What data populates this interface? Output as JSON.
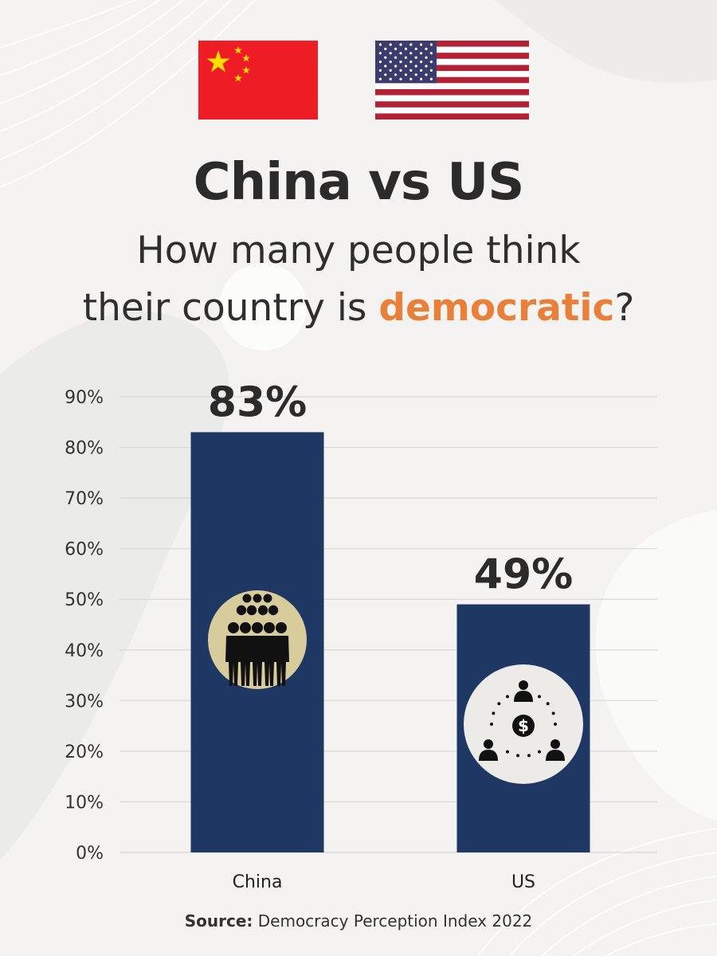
{
  "header": {
    "title": "China vs US",
    "subtitle_line1": "How many people think",
    "subtitle_line2_prefix": "their country is ",
    "subtitle_highlight": "democratic",
    "subtitle_line2_suffix": "?"
  },
  "flags": [
    {
      "country": "China",
      "icon": "china-flag-icon"
    },
    {
      "country": "US",
      "icon": "us-flag-icon"
    }
  ],
  "chart_data": {
    "type": "bar",
    "title": "",
    "xlabel": "",
    "ylabel": "",
    "categories": [
      "China",
      "US"
    ],
    "values": [
      83,
      49
    ],
    "value_labels": [
      "83%",
      "49%"
    ],
    "ylim": [
      0,
      90
    ],
    "yticks": [
      "0%",
      "10%",
      "20%",
      "30%",
      "40%",
      "50%",
      "60%",
      "70%",
      "80%",
      "90%"
    ],
    "grid": true,
    "bar_icons": [
      "crowd-icon",
      "money-network-icon"
    ]
  },
  "colors": {
    "bar": "#1f3763",
    "accent": "#e8803a",
    "icon_badge_china": "#d8cc9c",
    "icon_badge_us": "#ecebe8",
    "grid": "#d8d8d8"
  },
  "footer": {
    "source_label": "Source:",
    "source_text": " Democracy Perception Index 2022"
  }
}
